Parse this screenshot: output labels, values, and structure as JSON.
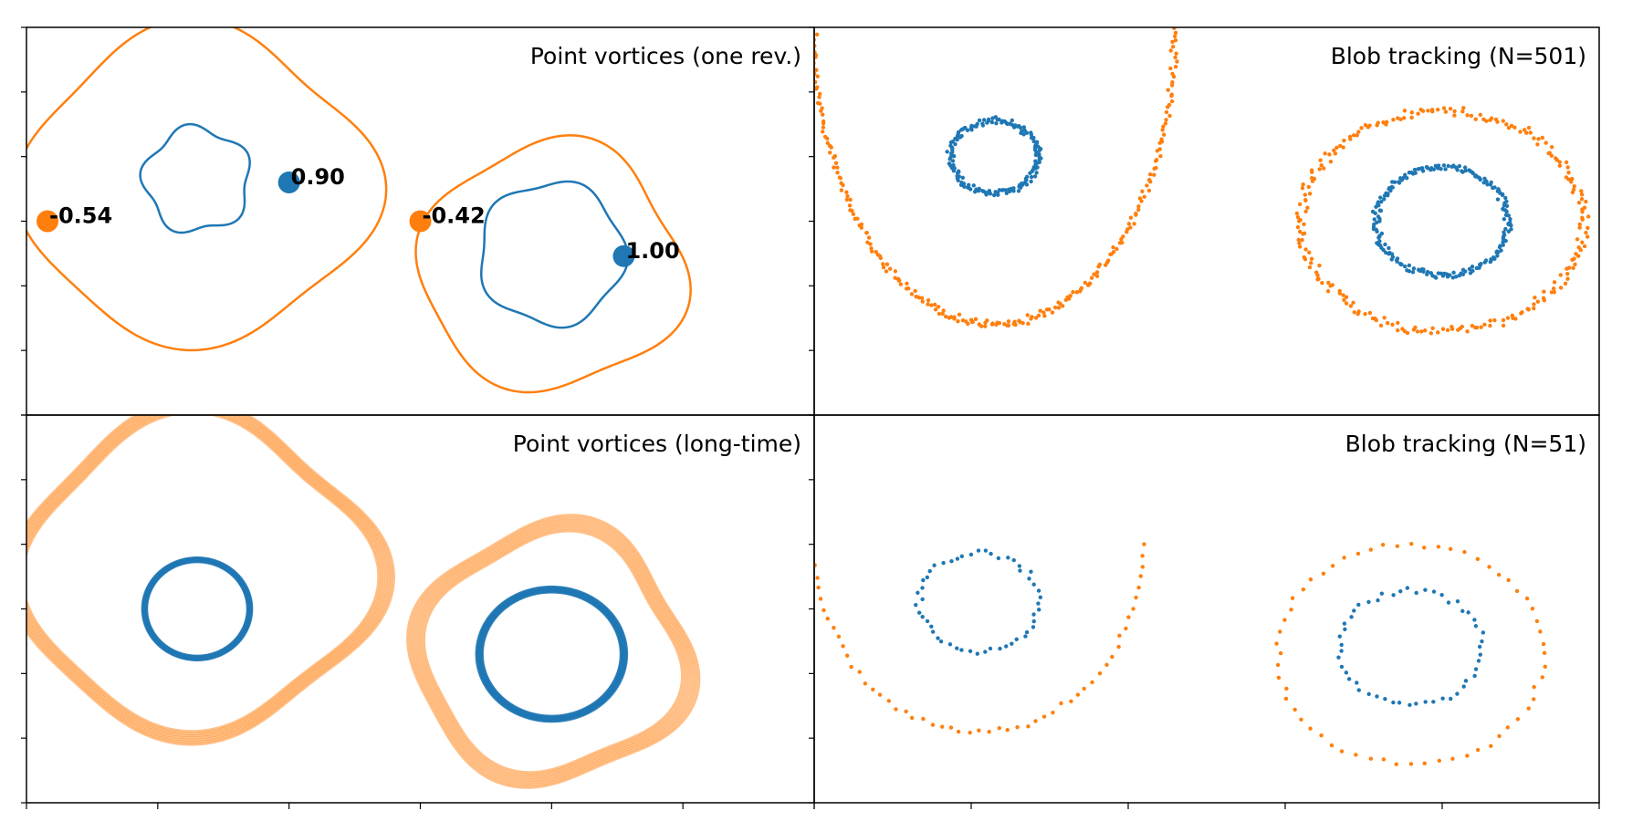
{
  "colors": {
    "blue": "#1f77b4",
    "orange": "#ff7f0e",
    "frame": "#000000",
    "background": "#ffffff"
  },
  "chart_data": [
    {
      "id": "top-left",
      "type": "line",
      "title": "Point vortices (one rev.)",
      "xlim": [
        -3,
        3
      ],
      "ylim": [
        -1.5,
        1.5
      ],
      "x_ticks": [
        -3,
        -2,
        -1,
        0,
        1,
        2,
        3
      ],
      "y_ticks": [
        -1.5,
        -1.0,
        -0.5,
        0.0,
        0.5,
        1.0,
        1.5
      ],
      "series": [
        {
          "color": "orange",
          "kind": "closed-curve",
          "center": [
            -1.7,
            0.27
          ],
          "rx": 1.32,
          "ry": 1.2,
          "shape": "rounded-square",
          "phase": 0.0
        },
        {
          "color": "blue",
          "kind": "closed-curve",
          "center": [
            -1.7,
            0.32
          ],
          "rx": 0.4,
          "ry": 0.4,
          "shape": "pentagon",
          "phase": -0.5
        },
        {
          "color": "orange",
          "kind": "closed-curve",
          "center": [
            1.0,
            -0.35
          ],
          "rx": 1.0,
          "ry": 0.95,
          "shape": "rounded-square",
          "phase": 0.3
        },
        {
          "color": "blue",
          "kind": "closed-curve",
          "center": [
            1.0,
            -0.25
          ],
          "rx": 0.55,
          "ry": 0.55,
          "shape": "wavy-circle",
          "phase": 0.0
        }
      ],
      "markers": [
        {
          "x": -2.84,
          "y": 0.0,
          "color": "orange",
          "label": "-0.54"
        },
        {
          "x": -1.0,
          "y": 0.3,
          "color": "blue",
          "label": "0.90"
        },
        {
          "x": 0.0,
          "y": 0.0,
          "color": "orange",
          "label": "-0.42"
        },
        {
          "x": 1.55,
          "y": -0.27,
          "color": "blue",
          "label": "1.00"
        }
      ]
    },
    {
      "id": "top-right",
      "type": "scatter",
      "title": "Blob tracking (N=501)",
      "xlim": [
        -1.5,
        3.5
      ],
      "ylim": [
        -1.5,
        1.5
      ],
      "x_ticks": [
        -1.5,
        -0.5,
        0.5,
        1.5,
        2.5,
        3.5
      ],
      "y_ticks": [
        -1.5,
        -1.0,
        -0.5,
        0.0,
        0.5,
        1.0,
        1.5
      ],
      "series": [
        {
          "color": "orange",
          "kind": "u-curve",
          "center": [
            -0.35,
            1.5
          ],
          "rx": 1.15,
          "ry": 2.3,
          "count": 240,
          "jitter": 0.025
        },
        {
          "color": "blue",
          "kind": "ring",
          "center": [
            -0.35,
            0.5
          ],
          "rx": 0.28,
          "ry": 0.28,
          "count": 160,
          "jitter": 0.02
        },
        {
          "color": "orange",
          "kind": "ring",
          "center": [
            2.5,
            0.0
          ],
          "rx": 0.9,
          "ry": 0.85,
          "count": 240,
          "jitter": 0.03
        },
        {
          "color": "blue",
          "kind": "ring",
          "center": [
            2.5,
            0.0
          ],
          "rx": 0.42,
          "ry": 0.42,
          "count": 200,
          "jitter": 0.02
        }
      ]
    },
    {
      "id": "bottom-left",
      "type": "line",
      "title": "Point vortices (long-time)",
      "xlim": [
        -3,
        3
      ],
      "ylim": [
        -1.5,
        1.5
      ],
      "x_ticks": [
        -3,
        -2,
        -1,
        0,
        1,
        2,
        3
      ],
      "y_ticks": [
        -1.5,
        -1.0,
        -0.5,
        0.0,
        0.5,
        1.0,
        1.5
      ],
      "series": [
        {
          "color": "orange",
          "kind": "band",
          "center": [
            -1.7,
            0.27
          ],
          "rx": 1.32,
          "ry": 1.2,
          "shape": "rounded-square",
          "phase": 0.0,
          "thickness": 0.04,
          "opacity": 0.5
        },
        {
          "color": "blue",
          "kind": "band",
          "center": [
            -1.7,
            0.0
          ],
          "rx": 0.4,
          "ry": 0.38,
          "shape": "circle",
          "phase": 0.0,
          "thickness": 0.04,
          "opacity": 0.9
        },
        {
          "color": "orange",
          "kind": "band",
          "center": [
            1.0,
            -0.35
          ],
          "rx": 1.0,
          "ry": 0.95,
          "shape": "rounded-square",
          "phase": 0.3,
          "thickness": 0.06,
          "opacity": 0.5
        },
        {
          "color": "blue",
          "kind": "band",
          "center": [
            1.0,
            -0.35
          ],
          "rx": 0.55,
          "ry": 0.5,
          "shape": "circle",
          "phase": 0.0,
          "thickness": 0.04,
          "opacity": 0.9
        }
      ]
    },
    {
      "id": "bottom-right",
      "type": "scatter",
      "title": "Blob tracking (N=51)",
      "xlim": [
        -1.5,
        3.5
      ],
      "ylim": [
        -1.5,
        1.5
      ],
      "x_ticks": [
        -1.5,
        -0.5,
        0.5,
        1.5,
        2.5,
        3.5
      ],
      "y_ticks": [
        -1.5,
        -1.0,
        -0.5,
        0.0,
        0.5,
        1.0,
        1.5
      ],
      "series": [
        {
          "color": "orange",
          "kind": "u-curve",
          "center": [
            -0.45,
            0.5
          ],
          "rx": 1.05,
          "ry": 1.45,
          "count": 55,
          "jitter": 0.02
        },
        {
          "color": "blue",
          "kind": "ring",
          "center": [
            -0.45,
            0.05
          ],
          "rx": 0.38,
          "ry": 0.38,
          "count": 51,
          "jitter": 0.02
        },
        {
          "color": "orange",
          "kind": "ring",
          "center": [
            2.3,
            -0.35
          ],
          "rx": 0.85,
          "ry": 0.85,
          "count": 60,
          "jitter": 0.02
        },
        {
          "color": "blue",
          "kind": "ring",
          "center": [
            2.3,
            -0.3
          ],
          "rx": 0.45,
          "ry": 0.45,
          "count": 51,
          "jitter": 0.02
        }
      ]
    }
  ]
}
